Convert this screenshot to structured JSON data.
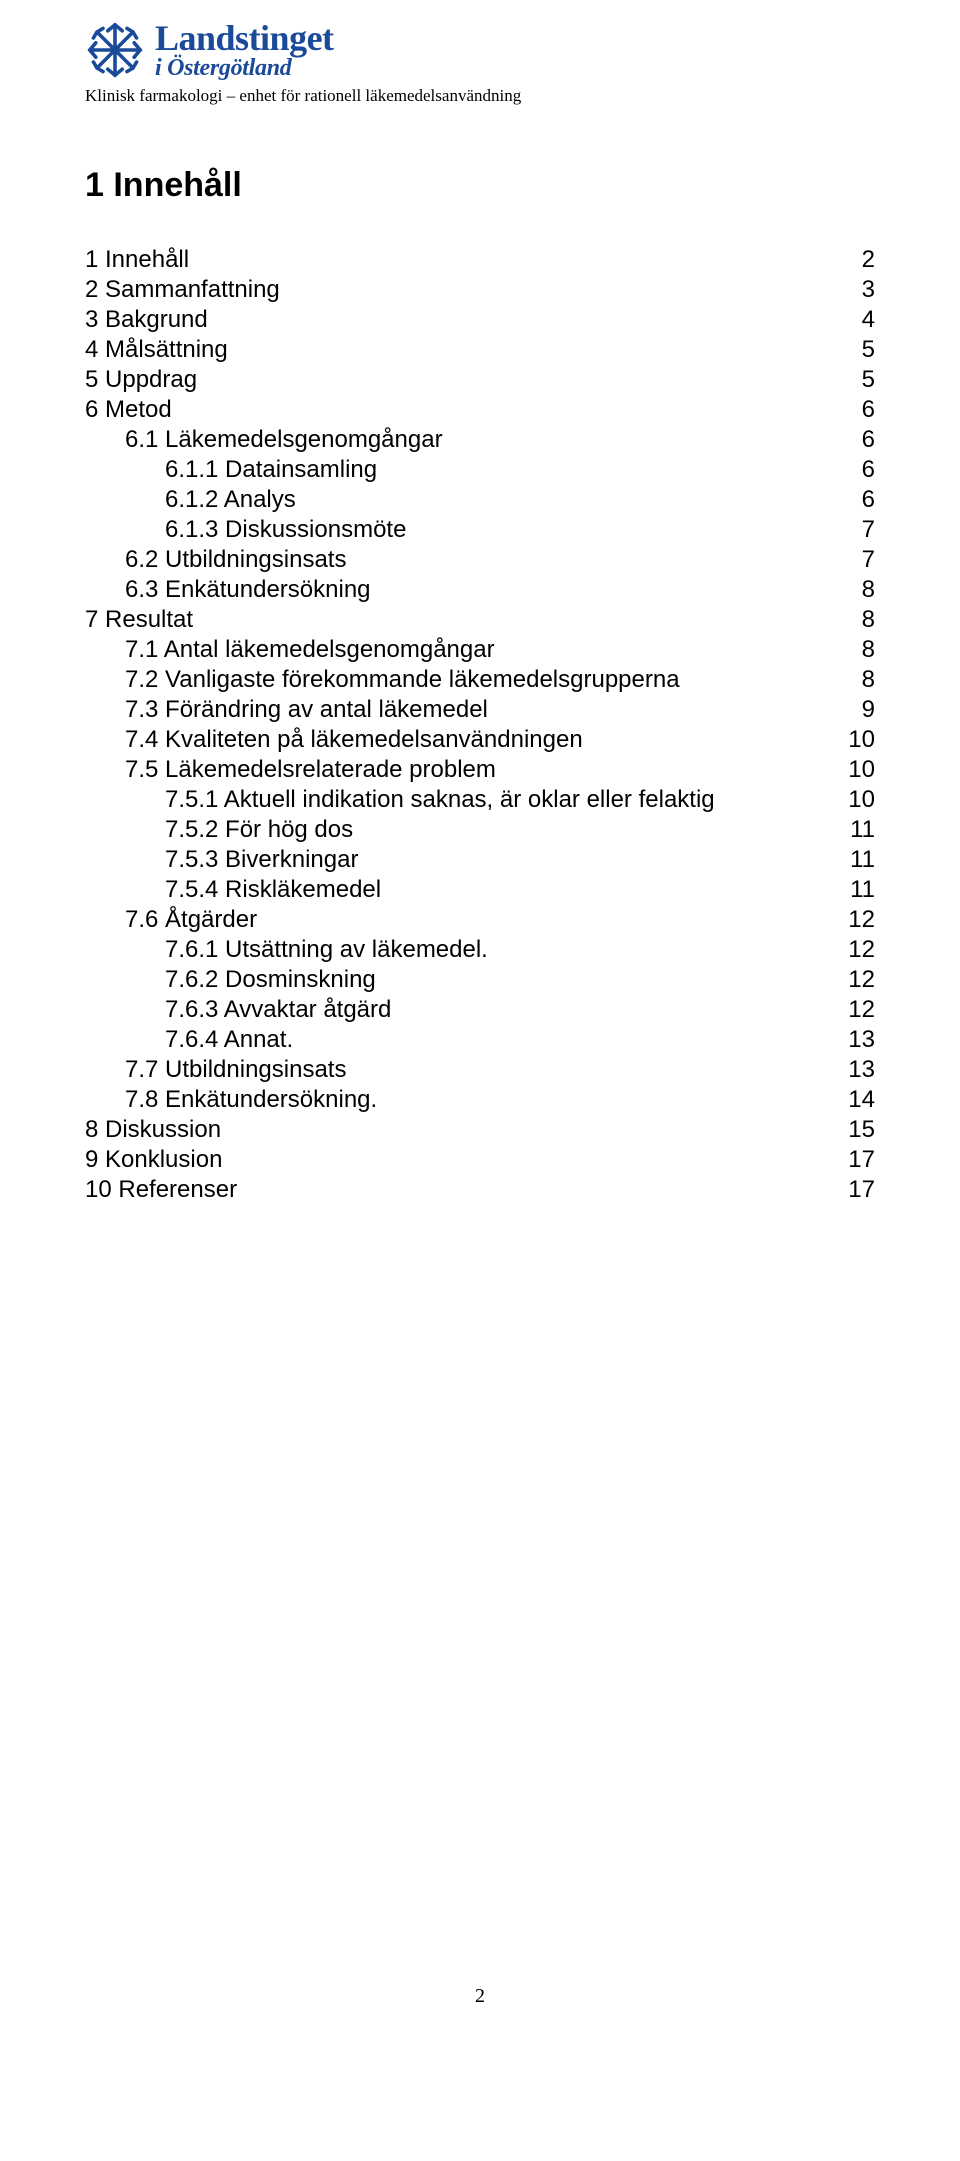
{
  "colors": {
    "brand_blue": "#1a4a99",
    "text_black": "#000000",
    "page_bg": "#ffffff"
  },
  "typography": {
    "heading_fontfamily": "Arial, Helvetica, sans-serif",
    "body_fontfamily": "Arial, Helvetica, sans-serif",
    "logo_fontfamily": "Times New Roman, Times, serif",
    "title_fontsize_pt": 26,
    "toc_fontsize_pt": 18,
    "subtitle_fontsize_pt": 13
  },
  "logo": {
    "line1": "Landstinget",
    "line2": "i Östergötland"
  },
  "header_subtitle": "Klinisk farmakologi – enhet för rationell läkemedelsanvändning",
  "toc_title": "1  Innehåll",
  "toc": [
    {
      "label": "1 Innehåll",
      "page": "2",
      "indent": 0
    },
    {
      "label": "2 Sammanfattning",
      "page": "3",
      "indent": 0
    },
    {
      "label": "3 Bakgrund",
      "page": "4",
      "indent": 0
    },
    {
      "label": "4 Målsättning",
      "page": "5",
      "indent": 0
    },
    {
      "label": "5 Uppdrag",
      "page": "5",
      "indent": 0
    },
    {
      "label": "6 Metod",
      "page": "6",
      "indent": 0
    },
    {
      "label": "6.1 Läkemedelsgenomgångar",
      "page": "6",
      "indent": 1
    },
    {
      "label": "6.1.1 Datainsamling",
      "page": "6",
      "indent": 2
    },
    {
      "label": "6.1.2 Analys",
      "page": "6",
      "indent": 2
    },
    {
      "label": "6.1.3 Diskussionsmöte",
      "page": "7",
      "indent": 2
    },
    {
      "label": "6.2 Utbildningsinsats",
      "page": "7",
      "indent": 1
    },
    {
      "label": "6.3 Enkätundersökning",
      "page": "8",
      "indent": 1
    },
    {
      "label": "7 Resultat",
      "page": "8",
      "indent": 0
    },
    {
      "label": "7.1 Antal läkemedelsgenomgångar",
      "page": "8",
      "indent": 1
    },
    {
      "label": "7.2 Vanligaste förekommande läkemedelsgrupperna",
      "page": "8",
      "indent": 1
    },
    {
      "label": "7.3 Förändring av antal läkemedel",
      "page": "9",
      "indent": 1
    },
    {
      "label": "7.4 Kvaliteten på läkemedelsanvändningen",
      "page": "10",
      "indent": 1
    },
    {
      "label": "7.5 Läkemedelsrelaterade problem",
      "page": "10",
      "indent": 1
    },
    {
      "label": "7.5.1 Aktuell indikation saknas, är oklar eller felaktig",
      "page": "10",
      "indent": 2
    },
    {
      "label": "7.5.2 För hög dos",
      "page": "11",
      "indent": 2
    },
    {
      "label": "7.5.3 Biverkningar",
      "page": "11",
      "indent": 2
    },
    {
      "label": "7.5.4 Riskläkemedel",
      "page": "11",
      "indent": 2
    },
    {
      "label": "7.6 Åtgärder",
      "page": "12",
      "indent": 1
    },
    {
      "label": "7.6.1 Utsättning av läkemedel.",
      "page": "12",
      "indent": 2
    },
    {
      "label": "7.6.2 Dosminskning",
      "page": "12",
      "indent": 2
    },
    {
      "label": "7.6.3 Avvaktar åtgärd",
      "page": "12",
      "indent": 2
    },
    {
      "label": "7.6.4 Annat.",
      "page": "13",
      "indent": 2
    },
    {
      "label": "7.7 Utbildningsinsats",
      "page": "13",
      "indent": 1
    },
    {
      "label": "7.8 Enkätundersökning.",
      "page": "14",
      "indent": 1
    },
    {
      "label": "8 Diskussion",
      "page": "15",
      "indent": 0
    },
    {
      "label": "9 Konklusion",
      "page": "17",
      "indent": 0
    },
    {
      "label": "10 Referenser",
      "page": "17",
      "indent": 0
    }
  ],
  "page_number": "2"
}
